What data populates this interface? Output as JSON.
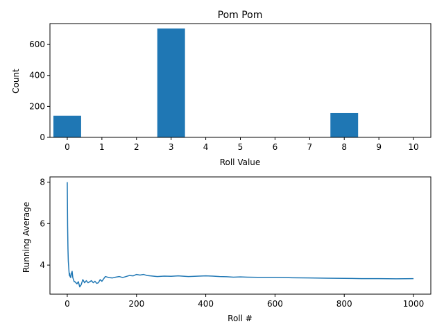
{
  "chart_data": [
    {
      "type": "bar",
      "title": "Pom Pom",
      "xlabel": "Roll Value",
      "ylabel": "Count",
      "categories": [
        0,
        1,
        2,
        3,
        4,
        5,
        6,
        7,
        8,
        9,
        10
      ],
      "values": [
        140,
        0,
        0,
        703,
        0,
        0,
        0,
        0,
        157,
        0,
        0
      ],
      "xlim": [
        -0.5,
        10.5
      ],
      "ylim": [
        0,
        735
      ],
      "xticks": [
        0,
        1,
        2,
        3,
        4,
        5,
        6,
        7,
        8,
        9,
        10
      ],
      "yticks": [
        0,
        200,
        400,
        600
      ],
      "bar_color": "#1f77b4",
      "grid": false
    },
    {
      "type": "line",
      "title": "",
      "xlabel": "Roll #",
      "ylabel": "Running Average",
      "xlim": [
        -50,
        1050
      ],
      "ylim": [
        2.6,
        8.25
      ],
      "xticks": [
        0,
        200,
        400,
        600,
        800,
        1000
      ],
      "yticks": [
        4,
        6,
        8
      ],
      "line_color": "#1f77b4",
      "grid": false,
      "series": [
        {
          "x": [
            0,
            1,
            2,
            3,
            4,
            5,
            6,
            7,
            8,
            10,
            12,
            14,
            16,
            18,
            20,
            22,
            25,
            28,
            32,
            36,
            40,
            45,
            50,
            55,
            60,
            65,
            70,
            75,
            80,
            85,
            90,
            95,
            100,
            110,
            120,
            130,
            140,
            150,
            160,
            170,
            180,
            190,
            200,
            210,
            220,
            230,
            240,
            260,
            280,
            300,
            320,
            350,
            380,
            400,
            420,
            440,
            460,
            480,
            500,
            520,
            550,
            600,
            650,
            700,
            750,
            800,
            850,
            900,
            950,
            1000
          ],
          "y": [
            8.0,
            5.9,
            4.8,
            4.2,
            3.95,
            3.7,
            3.5,
            3.6,
            3.45,
            3.4,
            3.6,
            3.7,
            3.4,
            3.3,
            3.2,
            3.2,
            3.15,
            3.1,
            3.2,
            2.95,
            3.05,
            3.3,
            3.15,
            3.25,
            3.15,
            3.2,
            3.25,
            3.15,
            3.22,
            3.12,
            3.15,
            3.3,
            3.22,
            3.45,
            3.4,
            3.38,
            3.42,
            3.45,
            3.4,
            3.45,
            3.5,
            3.48,
            3.55,
            3.52,
            3.55,
            3.5,
            3.48,
            3.45,
            3.47,
            3.46,
            3.48,
            3.45,
            3.47,
            3.48,
            3.47,
            3.45,
            3.44,
            3.42,
            3.43,
            3.42,
            3.41,
            3.41,
            3.39,
            3.38,
            3.37,
            3.36,
            3.35,
            3.35,
            3.34,
            3.35
          ]
        }
      ]
    }
  ]
}
